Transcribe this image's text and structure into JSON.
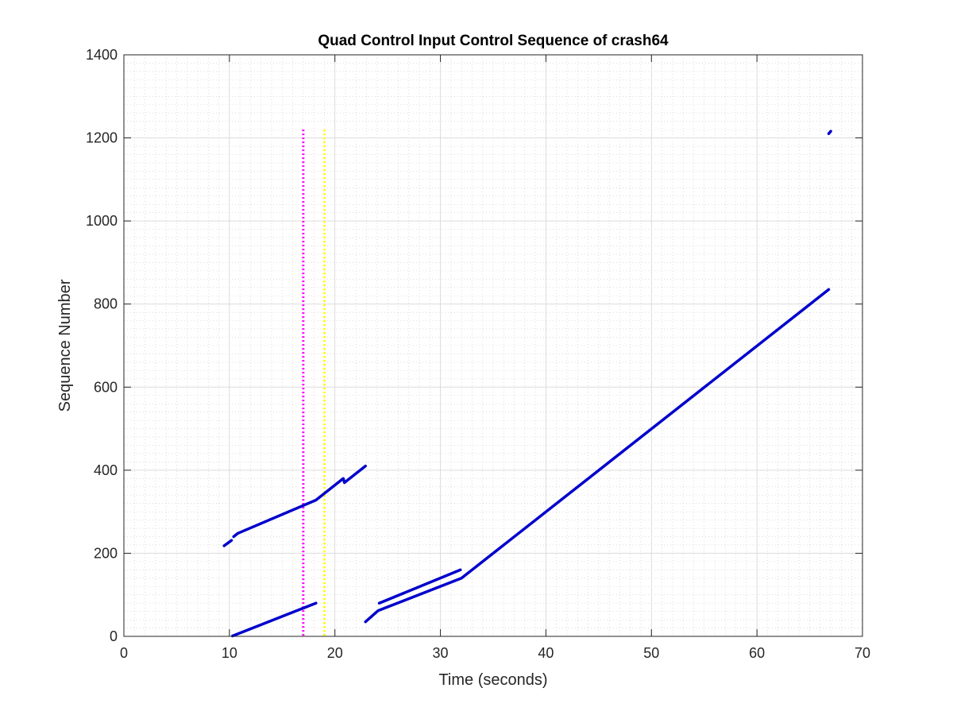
{
  "chart_data": {
    "type": "line",
    "title": "Quad Control Input Control Sequence of crash64",
    "xlabel": "Time (seconds)",
    "ylabel": "Sequence Number",
    "xlim": [
      0,
      70
    ],
    "ylim": [
      0,
      1400
    ],
    "xticks": [
      "0",
      "10",
      "20",
      "30",
      "40",
      "50",
      "60",
      "70"
    ],
    "yticks": [
      "0",
      "200",
      "400",
      "600",
      "800",
      "1000",
      "1200",
      "1400"
    ],
    "grid": true,
    "minor_grid": true,
    "series": [
      {
        "color": "#0000CC",
        "segments": [
          [
            [
              9.5,
              218
            ],
            [
              10.2,
              231
            ]
          ],
          [
            [
              10.4,
              240
            ],
            [
              10.8,
              248
            ],
            [
              18.2,
              328
            ],
            [
              20.8,
              380
            ],
            [
              20.9,
              370
            ],
            [
              22.9,
              410
            ]
          ],
          [
            [
              10.3,
              1
            ],
            [
              18.2,
              80
            ]
          ],
          [
            [
              22.9,
              35
            ],
            [
              24.1,
              62
            ],
            [
              32.0,
              140
            ],
            [
              66.8,
              835
            ]
          ],
          [
            [
              24.2,
              80
            ],
            [
              31.9,
              160
            ]
          ],
          [
            [
              66.8,
              1210
            ],
            [
              67.0,
              1216
            ]
          ]
        ]
      }
    ],
    "markers": [
      {
        "x": 17.0,
        "y_range": [
          0,
          1220
        ],
        "color": "#FF00FF",
        "style": "dotted"
      },
      {
        "x": 19.0,
        "y_range": [
          0,
          1220
        ],
        "color": "#FFFF00",
        "style": "dotted"
      }
    ]
  }
}
